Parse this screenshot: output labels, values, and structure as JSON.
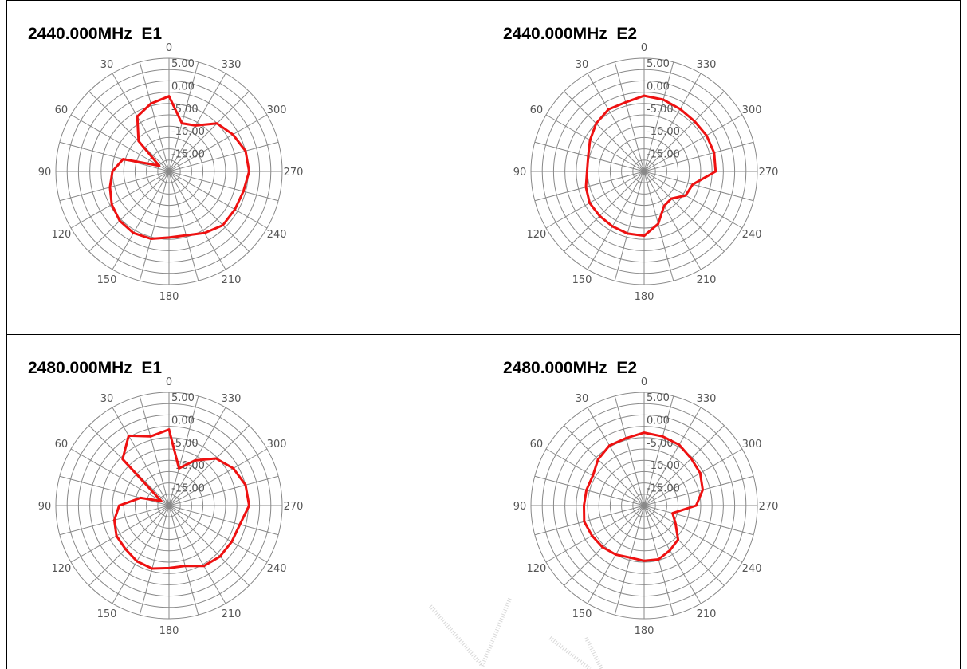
{
  "chart_data": [
    {
      "type": "polar",
      "title": "2440.000MHz  E1",
      "rlim": [
        -20,
        5
      ],
      "radial_ticks": [
        "5.00",
        "0.00",
        "-5.00",
        "-10.00",
        "-15.00"
      ],
      "angle_ticks": [
        "0",
        "30",
        "60",
        "90",
        "120",
        "150",
        "180",
        "210",
        "240",
        "270",
        "300",
        "330"
      ],
      "angles": [
        0,
        15,
        30,
        45,
        60,
        75,
        90,
        105,
        120,
        135,
        150,
        165,
        180,
        195,
        210,
        225,
        240,
        255,
        270,
        285,
        300,
        315,
        330,
        345
      ],
      "values": [
        -3.4,
        -4.5,
        -6.0,
        -10.5,
        -17.5,
        -9.5,
        -7.5,
        -6.5,
        -5.4,
        -4.6,
        -4.3,
        -4.6,
        -5.4,
        -5.4,
        -4.3,
        -3.2,
        -3.2,
        -3.0,
        -2.3,
        -2.5,
        -3.7,
        -5.0,
        -8.3,
        -9.0
      ]
    },
    {
      "type": "polar",
      "title": "2440.000MHz  E2",
      "rlim": [
        -20,
        5
      ],
      "radial_ticks": [
        "5.00",
        "0.00",
        "-5.00",
        "-10.00",
        "-15.00"
      ],
      "angle_ticks": [
        "0",
        "30",
        "60",
        "90",
        "120",
        "150",
        "180",
        "210",
        "240",
        "270",
        "300",
        "330"
      ],
      "angles": [
        0,
        15,
        30,
        45,
        60,
        75,
        90,
        105,
        120,
        135,
        150,
        165,
        180,
        195,
        210,
        225,
        240,
        255,
        270,
        285,
        300,
        315,
        330,
        345
      ],
      "values": [
        -3.3,
        -4.2,
        -4.2,
        -5.0,
        -6.2,
        -7.2,
        -7.4,
        -6.7,
        -6.1,
        -6.1,
        -6.0,
        -5.8,
        -5.8,
        -8.0,
        -11.2,
        -11.5,
        -9.4,
        -8.9,
        -4.2,
        -4.0,
        -4.1,
        -4.3,
        -4.1,
        -3.6
      ]
    },
    {
      "type": "polar",
      "title": "2480.000MHz  E1",
      "rlim": [
        -20,
        5
      ],
      "radial_ticks": [
        "5.00",
        "0.00",
        "-5.00",
        "-10.00",
        "-15.00"
      ],
      "angle_ticks": [
        "0",
        "30",
        "60",
        "90",
        "120",
        "150",
        "180",
        "210",
        "240",
        "270",
        "300",
        "330"
      ],
      "angles": [
        0,
        15,
        30,
        45,
        60,
        75,
        90,
        105,
        120,
        135,
        150,
        165,
        180,
        195,
        210,
        225,
        240,
        255,
        270,
        285,
        300,
        315,
        330,
        345
      ],
      "values": [
        -3.2,
        -4.2,
        -2.2,
        -5.5,
        -18.0,
        -13.5,
        -9.0,
        -7.5,
        -6.6,
        -6.4,
        -5.8,
        -5.6,
        -6.2,
        -6.2,
        -4.6,
        -4.1,
        -4.0,
        -3.8,
        -2.3,
        -2.5,
        -3.6,
        -5.3,
        -8.5,
        -11.5
      ]
    },
    {
      "type": "polar",
      "title": "2480.000MHz  E2",
      "rlim": [
        -20,
        5
      ],
      "radial_ticks": [
        "5.00",
        "0.00",
        "-5.00",
        "-10.00",
        "-15.00"
      ],
      "angle_ticks": [
        "0",
        "30",
        "60",
        "90",
        "120",
        "150",
        "180",
        "210",
        "240",
        "270",
        "300",
        "330"
      ],
      "angles": [
        0,
        15,
        30,
        45,
        60,
        75,
        90,
        105,
        120,
        135,
        150,
        165,
        180,
        195,
        210,
        225,
        240,
        255,
        270,
        285,
        300,
        315,
        330,
        345
      ],
      "values": [
        -3.9,
        -4.6,
        -4.7,
        -5.6,
        -6.9,
        -6.8,
        -6.7,
        -6.3,
        -6.7,
        -7.0,
        -7.5,
        -8.1,
        -7.8,
        -7.7,
        -8.6,
        -9.4,
        -12.0,
        -13.5,
        -8.5,
        -6.6,
        -5.7,
        -5.3,
        -4.5,
        -4.2
      ]
    }
  ],
  "colors": {
    "trace": "#ee1111",
    "grid": "#888888",
    "tick": "#555555",
    "border": "#000000"
  }
}
